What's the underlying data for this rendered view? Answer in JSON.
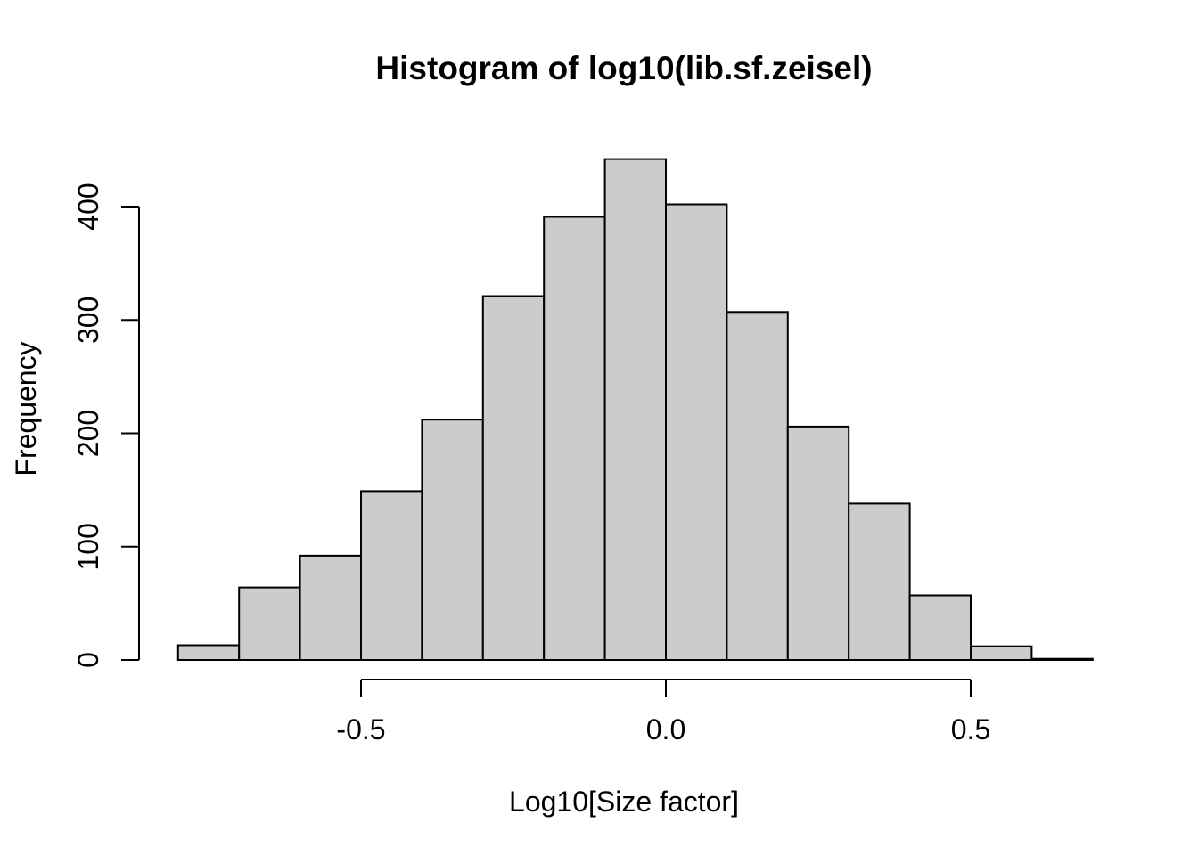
{
  "chart_data": {
    "type": "bar",
    "subtype": "histogram",
    "title": "Histogram of log10(lib.sf.zeisel)",
    "xlabel": "Log10[Size factor]",
    "ylabel": "Frequency",
    "bin_edges": [
      -0.8,
      -0.7,
      -0.6,
      -0.5,
      -0.4,
      -0.3,
      -0.2,
      -0.1,
      0.0,
      0.1,
      0.2,
      0.3,
      0.4,
      0.5,
      0.6,
      0.7
    ],
    "counts": [
      13,
      64,
      92,
      149,
      212,
      321,
      391,
      442,
      402,
      307,
      206,
      138,
      57,
      12,
      1
    ],
    "x_tick_values": [
      -0.5,
      0.0,
      0.5
    ],
    "x_tick_labels": [
      "-0.5",
      "0.0",
      "0.5"
    ],
    "y_tick_values": [
      0,
      100,
      200,
      300,
      400
    ],
    "y_tick_labels": [
      "0",
      "100",
      "200",
      "300",
      "400"
    ],
    "xlim": [
      -0.8,
      0.7
    ],
    "ylim": [
      0,
      442
    ],
    "grid": false,
    "legend": "none",
    "bar_fill": "#cccccc",
    "bar_stroke": "#000000",
    "axis_color": "#000000",
    "text_color": "#000000",
    "background": "#ffffff"
  }
}
